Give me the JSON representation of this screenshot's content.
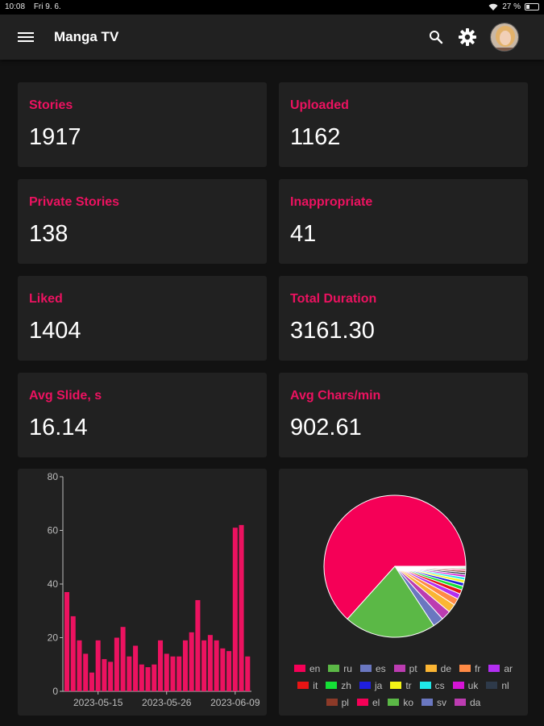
{
  "status": {
    "time": "10:08",
    "date": "Fri 9. 6.",
    "battery": "27 %",
    "battery_level": 27
  },
  "app": {
    "title": "Manga TV"
  },
  "colors": {
    "accent": "#ec1260",
    "card": "#212121",
    "background": "#121212"
  },
  "stats": [
    {
      "label": "Stories",
      "value": "1917"
    },
    {
      "label": "Uploaded",
      "value": "1162"
    },
    {
      "label": "Private Stories",
      "value": "138"
    },
    {
      "label": "Inappropriate",
      "value": "41"
    },
    {
      "label": "Liked",
      "value": "1404"
    },
    {
      "label": "Total Duration",
      "value": "3161.30"
    },
    {
      "label": "Avg Slide, s",
      "value": "16.14"
    },
    {
      "label": "Avg Chars/min",
      "value": "902.61"
    }
  ],
  "chart_data": [
    {
      "type": "bar",
      "title": "",
      "xlabel": "",
      "ylabel": "",
      "ylim": [
        0,
        80
      ],
      "y_ticks": [
        "0",
        "20",
        "40",
        "60",
        "80"
      ],
      "x_tick_labels": [
        "2023-05-15",
        "2023-05-26",
        "2023-06-09"
      ],
      "values": [
        37,
        28,
        19,
        14,
        7,
        19,
        12,
        11,
        20,
        24,
        13,
        17,
        10,
        9,
        10,
        19,
        14,
        13,
        13,
        19,
        22,
        34,
        19,
        21,
        19,
        16,
        15,
        61,
        62,
        13
      ],
      "color": "#ec1260"
    },
    {
      "type": "pie",
      "title": "",
      "labels": [
        "en",
        "ru",
        "es",
        "pt",
        "de",
        "fr",
        "ar",
        "it",
        "zh",
        "ja",
        "tr",
        "cs",
        "uk",
        "nl",
        "pl",
        "el",
        "ko",
        "sv",
        "da"
      ],
      "values": [
        1150,
        380,
        45,
        40,
        35,
        28,
        22,
        18,
        16,
        14,
        12,
        11,
        10,
        9,
        8,
        6,
        5,
        4,
        3
      ],
      "colors": [
        "#f50057",
        "#5bb846",
        "#6a77c0",
        "#bc3cb1",
        "#fbb533",
        "#ff8a45",
        "#b32ef2",
        "#e81414",
        "#14e036",
        "#1f1fe0",
        "#f5f516",
        "#1fe8e8",
        "#d614d6",
        "#2e3a4a",
        "#8c3a28",
        "#f50057",
        "#5bb846",
        "#6a77c0",
        "#bc3cb1"
      ]
    }
  ]
}
